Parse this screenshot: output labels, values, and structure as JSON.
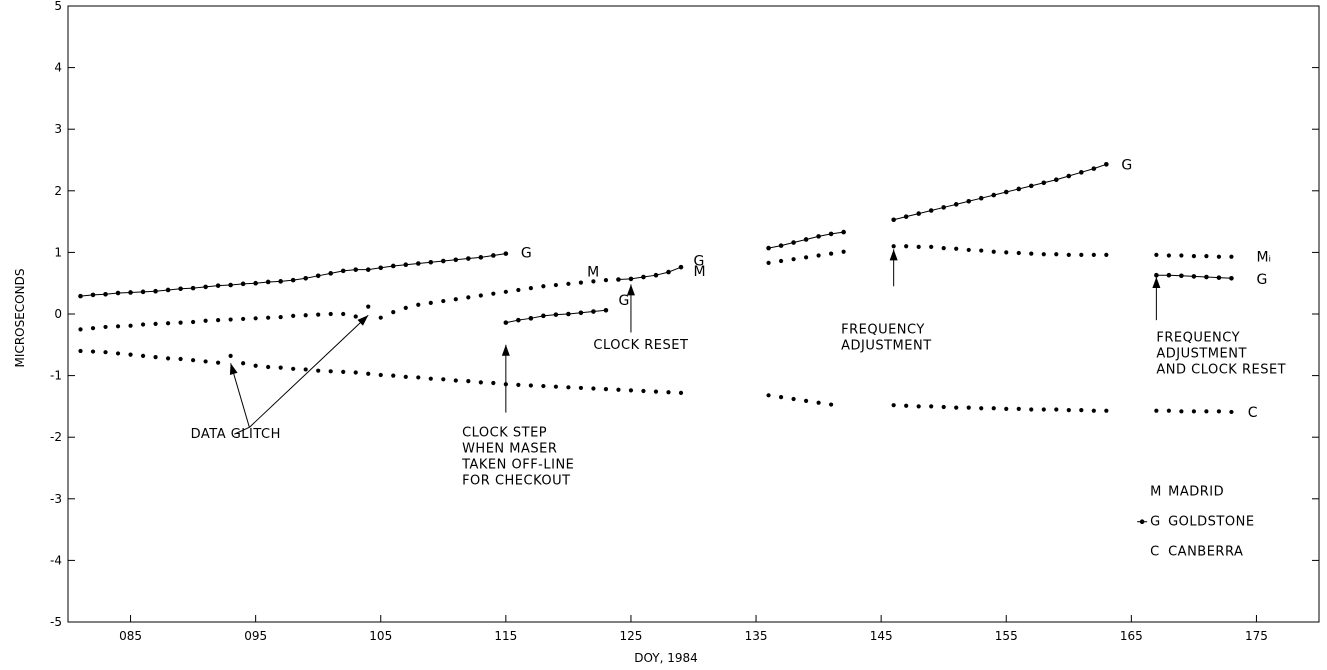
{
  "chart_data": {
    "type": "scatter",
    "xlabel": "DOY, 1984",
    "ylabel": "MICROSECONDS",
    "xlim": [
      80,
      180
    ],
    "ylim": [
      -5,
      5
    ],
    "x_ticks": [
      {
        "v": 85,
        "label": "085"
      },
      {
        "v": 95,
        "label": "095"
      },
      {
        "v": 105,
        "label": "105"
      },
      {
        "v": 115,
        "label": "115"
      },
      {
        "v": 125,
        "label": "125"
      },
      {
        "v": 135,
        "label": "135"
      },
      {
        "v": 145,
        "label": "145"
      },
      {
        "v": 155,
        "label": "155"
      },
      {
        "v": 165,
        "label": "165"
      },
      {
        "v": 175,
        "label": "175"
      }
    ],
    "y_ticks": [
      {
        "v": 5,
        "label": "5"
      },
      {
        "v": 4,
        "label": "4"
      },
      {
        "v": 3,
        "label": "3"
      },
      {
        "v": 2,
        "label": "2"
      },
      {
        "v": 1,
        "label": "1"
      },
      {
        "v": 0,
        "label": "0"
      },
      {
        "v": -1,
        "label": "-1"
      },
      {
        "v": -2,
        "label": "-2"
      },
      {
        "v": -3,
        "label": "-3"
      },
      {
        "v": -4,
        "label": "-4"
      },
      {
        "v": -5,
        "label": "-5"
      }
    ],
    "series": [
      {
        "name": "GOLDSTONE",
        "marker": "G",
        "connected": true,
        "segments": [
          {
            "x": [
              81,
              82,
              83,
              84,
              85,
              86,
              87,
              88,
              89,
              90,
              91,
              92,
              93,
              94,
              95,
              96,
              97,
              98,
              99,
              100,
              101,
              102,
              103,
              104,
              105,
              106,
              107,
              108,
              109,
              110,
              111,
              112,
              113,
              114,
              115
            ],
            "y": [
              0.29,
              0.31,
              0.32,
              0.34,
              0.35,
              0.36,
              0.37,
              0.39,
              0.41,
              0.42,
              0.44,
              0.46,
              0.47,
              0.49,
              0.5,
              0.52,
              0.53,
              0.55,
              0.58,
              0.62,
              0.66,
              0.7,
              0.72,
              0.72,
              0.75,
              0.78,
              0.8,
              0.82,
              0.84,
              0.86,
              0.88,
              0.9,
              0.92,
              0.95,
              0.98
            ]
          },
          {
            "x": [
              115,
              116,
              117,
              118,
              119,
              120,
              121,
              122,
              123
            ],
            "y": [
              -0.14,
              -0.1,
              -0.07,
              -0.03,
              -0.01,
              0.0,
              0.02,
              0.04,
              0.06
            ]
          },
          {
            "x": [
              124,
              125,
              126,
              127,
              128,
              129
            ],
            "y": [
              0.56,
              0.57,
              0.6,
              0.63,
              0.68,
              0.76
            ]
          },
          {
            "x": [
              136,
              137,
              138,
              139,
              140,
              141,
              142
            ],
            "y": [
              1.07,
              1.11,
              1.16,
              1.21,
              1.26,
              1.3,
              1.33
            ]
          },
          {
            "x": [
              146,
              147,
              148,
              149,
              150,
              151,
              152,
              153,
              154,
              155,
              156,
              157,
              158,
              159,
              160,
              161,
              162,
              163
            ],
            "y": [
              1.53,
              1.58,
              1.63,
              1.68,
              1.73,
              1.78,
              1.83,
              1.88,
              1.93,
              1.98,
              2.03,
              2.08,
              2.13,
              2.18,
              2.24,
              2.3,
              2.36,
              2.43
            ]
          },
          {
            "x": [
              167,
              168,
              169,
              170,
              171,
              172,
              173
            ],
            "y": [
              0.63,
              0.63,
              0.62,
              0.61,
              0.6,
              0.59,
              0.58
            ]
          }
        ]
      },
      {
        "name": "MADRID",
        "marker": "M",
        "connected": false,
        "segments": [
          {
            "x": [
              81,
              82,
              83,
              84,
              85,
              86,
              87,
              88,
              89,
              90,
              91,
              92,
              93,
              94,
              95,
              96,
              97,
              98,
              99,
              100,
              101,
              102,
              103,
              104,
              105,
              106,
              107,
              108,
              109,
              110,
              111,
              112,
              113,
              114,
              115,
              116,
              117,
              118,
              119,
              120,
              121,
              122,
              123
            ],
            "y": [
              -0.25,
              -0.23,
              -0.21,
              -0.2,
              -0.19,
              -0.17,
              -0.16,
              -0.15,
              -0.14,
              -0.13,
              -0.11,
              -0.1,
              -0.09,
              -0.08,
              -0.07,
              -0.06,
              -0.05,
              -0.03,
              -0.02,
              -0.01,
              0.0,
              0.0,
              -0.04,
              0.12,
              -0.06,
              0.03,
              0.1,
              0.15,
              0.18,
              0.21,
              0.24,
              0.27,
              0.3,
              0.33,
              0.36,
              0.39,
              0.42,
              0.45,
              0.47,
              0.49,
              0.51,
              0.53,
              0.55
            ]
          },
          {
            "x": [
              136,
              137,
              138,
              139,
              140,
              141,
              142
            ],
            "y": [
              0.83,
              0.86,
              0.89,
              0.92,
              0.95,
              0.98,
              1.01
            ]
          },
          {
            "x": [
              146,
              147,
              148,
              149,
              150,
              151,
              152,
              153,
              154,
              155,
              156,
              157,
              158,
              159,
              160,
              161,
              162,
              163
            ],
            "y": [
              1.1,
              1.1,
              1.09,
              1.09,
              1.07,
              1.06,
              1.04,
              1.03,
              1.01,
              1.0,
              0.99,
              0.98,
              0.97,
              0.97,
              0.96,
              0.96,
              0.96,
              0.96
            ]
          },
          {
            "x": [
              167,
              168,
              169,
              170,
              171,
              172,
              173
            ],
            "y": [
              0.96,
              0.95,
              0.95,
              0.94,
              0.94,
              0.93,
              0.93
            ]
          }
        ]
      },
      {
        "name": "CANBERRA",
        "marker": "C",
        "connected": false,
        "segments": [
          {
            "x": [
              81,
              82,
              83,
              84,
              85,
              86,
              87,
              88,
              89,
              90,
              91,
              92,
              93,
              94,
              95,
              96,
              97,
              98,
              99,
              100,
              101,
              102,
              103,
              104,
              105,
              106,
              107,
              108,
              109,
              110,
              111,
              112,
              113,
              114,
              115,
              116,
              117,
              118,
              119,
              120,
              121,
              122,
              123,
              124,
              125,
              126,
              127,
              128,
              129
            ],
            "y": [
              -0.6,
              -0.61,
              -0.62,
              -0.64,
              -0.66,
              -0.68,
              -0.7,
              -0.72,
              -0.73,
              -0.75,
              -0.77,
              -0.79,
              -0.68,
              -0.8,
              -0.84,
              -0.86,
              -0.87,
              -0.89,
              -0.9,
              -0.92,
              -0.93,
              -0.94,
              -0.95,
              -0.97,
              -0.99,
              -1.0,
              -1.02,
              -1.03,
              -1.05,
              -1.06,
              -1.08,
              -1.09,
              -1.11,
              -1.12,
              -1.14,
              -1.15,
              -1.16,
              -1.17,
              -1.18,
              -1.19,
              -1.2,
              -1.21,
              -1.22,
              -1.23,
              -1.24,
              -1.25,
              -1.26,
              -1.27,
              -1.28
            ]
          },
          {
            "x": [
              136,
              137,
              138,
              139,
              140,
              141
            ],
            "y": [
              -1.32,
              -1.35,
              -1.38,
              -1.41,
              -1.44,
              -1.47
            ]
          },
          {
            "x": [
              146,
              147,
              148,
              149,
              150,
              151,
              152,
              153,
              154,
              155,
              156,
              157,
              158,
              159,
              160,
              161,
              162,
              163
            ],
            "y": [
              -1.48,
              -1.49,
              -1.5,
              -1.5,
              -1.51,
              -1.52,
              -1.52,
              -1.53,
              -1.53,
              -1.54,
              -1.54,
              -1.55,
              -1.55,
              -1.55,
              -1.56,
              -1.56,
              -1.57,
              -1.57
            ]
          },
          {
            "x": [
              167,
              168,
              169,
              170,
              171,
              172,
              173
            ],
            "y": [
              -1.57,
              -1.57,
              -1.58,
              -1.58,
              -1.58,
              -1.58,
              -1.59
            ]
          }
        ]
      }
    ],
    "end_markers": [
      {
        "text": "G",
        "x": 116.2,
        "y": 1.0
      },
      {
        "text": "G",
        "x": 124.0,
        "y": 0.23
      },
      {
        "text": "M",
        "x": 121.5,
        "y": 0.69
      },
      {
        "text": "G",
        "x": 130.0,
        "y": 0.87
      },
      {
        "text": "M",
        "x": 130.0,
        "y": 0.7
      },
      {
        "text": "G",
        "x": 164.2,
        "y": 2.43
      },
      {
        "text": "Mᵢ",
        "x": 175.0,
        "y": 0.93
      },
      {
        "text": "G",
        "x": 175.0,
        "y": 0.57
      },
      {
        "text": "C",
        "x": 174.3,
        "y": -1.59
      }
    ],
    "annotations": [
      {
        "name": "data-glitch",
        "lines": [
          "DATA GLITCH"
        ],
        "x": 89.8,
        "y": -1.95
      },
      {
        "name": "clock-step",
        "lines": [
          "CLOCK STEP",
          "WHEN MASER",
          "TAKEN OFF-LINE",
          "FOR CHECKOUT"
        ],
        "x": 111.5,
        "y": -1.92
      },
      {
        "name": "clock-reset",
        "lines": [
          "CLOCK RESET"
        ],
        "x": 122.0,
        "y": -0.5
      },
      {
        "name": "frequency-adjustment",
        "lines": [
          "FREQUENCY",
          "ADJUSTMENT"
        ],
        "x": 141.8,
        "y": -0.25
      },
      {
        "name": "frequency-adjustment-clock-reset",
        "lines": [
          "FREQUENCY",
          "ADJUSTMENT",
          "AND CLOCK RESET"
        ],
        "x": 167.0,
        "y": -0.38
      }
    ],
    "legend": {
      "position": "bottom-right",
      "items": [
        {
          "symbol": "M",
          "label": "MADRID"
        },
        {
          "symbol": "G",
          "label": "GOLDSTONE",
          "dot": true
        },
        {
          "symbol": "C",
          "label": "CANBERRA"
        }
      ]
    },
    "grid": false
  }
}
